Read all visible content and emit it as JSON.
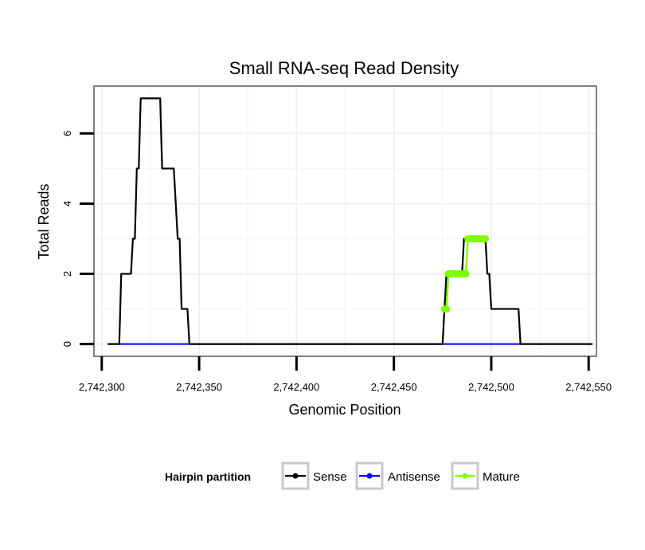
{
  "chart_data": {
    "type": "line",
    "title": "Small RNA-seq Read Density",
    "xlabel": "Genomic Position",
    "ylabel": "Total Reads",
    "xlim": [
      2742296,
      2742554
    ],
    "ylim": [
      -0.35,
      7.35
    ],
    "x_ticks": [
      2742300,
      2742350,
      2742400,
      2742450,
      2742500,
      2742550
    ],
    "x_tick_labels": [
      "2,742,300",
      "2,742,350",
      "2,742,400",
      "2,742,450",
      "2,742,500",
      "2,742,550"
    ],
    "y_ticks": [
      0,
      2,
      4,
      6
    ],
    "y_tick_labels": [
      "0",
      "2",
      "4",
      "6"
    ],
    "grid": true,
    "legend": {
      "title": "Hairpin partition",
      "position": "bottom"
    },
    "series": [
      {
        "name": "Sense",
        "color": "#000000",
        "x": [
          2742303,
          2742309,
          2742310,
          2742315,
          2742316,
          2742317,
          2742318,
          2742319,
          2742320,
          2742321,
          2742322,
          2742330,
          2742331,
          2742337,
          2742338,
          2742339,
          2742340,
          2742341,
          2742344,
          2742345,
          2742475,
          2742476,
          2742477,
          2742478,
          2742479,
          2742485,
          2742486,
          2742497,
          2742498,
          2742499,
          2742500,
          2742501,
          2742502,
          2742514,
          2742515,
          2742552
        ],
        "y": [
          0,
          0,
          2,
          2,
          3,
          3,
          5,
          5,
          7,
          7,
          7,
          7,
          5,
          5,
          4,
          3,
          3,
          1,
          1,
          0,
          0,
          1,
          2,
          2,
          2,
          2,
          3,
          3,
          2,
          2,
          1,
          1,
          1,
          1,
          0,
          0
        ]
      },
      {
        "name": "Antisense",
        "color": "#0000FF",
        "x": [
          2742309,
          2742345,
          2742476,
          2742515
        ],
        "y": [
          0,
          0,
          0,
          0
        ]
      },
      {
        "name": "Mature",
        "color": "#7FFF00",
        "x": [
          2742476,
          2742477,
          2742478,
          2742479,
          2742480,
          2742481,
          2742482,
          2742483,
          2742484,
          2742485,
          2742486,
          2742487,
          2742488,
          2742489,
          2742490,
          2742491,
          2742492,
          2742493,
          2742494,
          2742495,
          2742496,
          2742497
        ],
        "y": [
          1,
          1,
          2,
          2,
          2,
          2,
          2,
          2,
          2,
          2,
          2,
          2,
          3,
          3,
          3,
          3,
          3,
          3,
          3,
          3,
          3,
          3
        ]
      }
    ]
  }
}
